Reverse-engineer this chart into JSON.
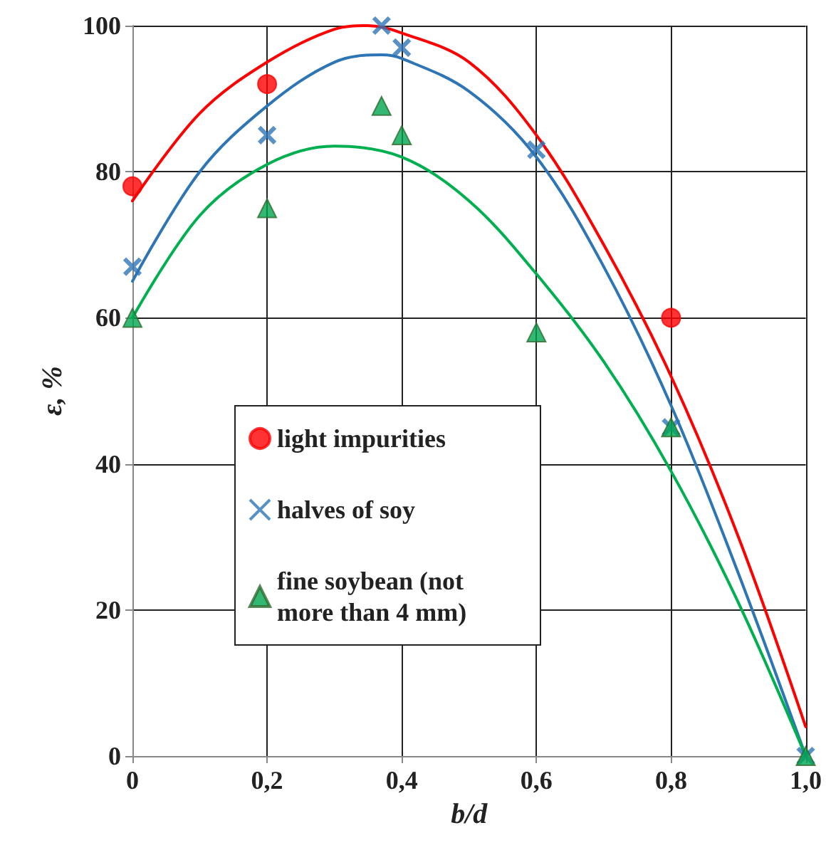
{
  "chart_data": {
    "type": "scatter",
    "xlabel": "b/d",
    "ylabel": "ε, %",
    "xlim": [
      0,
      1
    ],
    "xticks": [
      {
        "value": 0,
        "label": "0"
      },
      {
        "value": 0.2,
        "label": "0,2"
      },
      {
        "value": 0.4,
        "label": "0,4"
      },
      {
        "value": 0.6,
        "label": "0,6"
      },
      {
        "value": 0.8,
        "label": "0,8"
      },
      {
        "value": 1,
        "label": "1,0"
      }
    ],
    "ylim": [
      0,
      100
    ],
    "yticks": [
      0,
      20,
      40,
      60,
      80,
      100
    ],
    "grid": true,
    "legend": "bottom left",
    "series": [
      {
        "name": "light impurities",
        "marker": "circle",
        "color": "#ff0000",
        "x": [
          0,
          0.2,
          0.8
        ],
        "values": [
          78,
          92,
          60
        ]
      },
      {
        "name": "halves of soy",
        "marker": "cross",
        "color": "#2e75b6",
        "x": [
          0,
          0.2,
          0.37,
          0.4,
          0.6,
          0.8,
          1
        ],
        "values": [
          67,
          85,
          100,
          97,
          83,
          45,
          0
        ]
      },
      {
        "name": "fine soybean (not more than 4 mm)",
        "marker": "triangle",
        "color": "#00a650",
        "x": [
          0,
          0.2,
          0.37,
          0.4,
          0.6,
          0.8,
          1
        ],
        "values": [
          60,
          75,
          89,
          85,
          58,
          45,
          0
        ]
      },
      {
        "type": "line",
        "marker": "none",
        "color": "#ff0000",
        "x": [
          0,
          0.1,
          0.2,
          0.3,
          0.35,
          0.4,
          0.5,
          0.6,
          0.7,
          0.8,
          0.9,
          1
        ],
        "values": [
          76,
          88,
          95,
          99.5,
          100,
          99,
          95,
          85,
          70,
          52,
          30,
          4
        ]
      },
      {
        "type": "line",
        "marker": "none",
        "color": "#2e75b6",
        "x": [
          0,
          0.1,
          0.2,
          0.3,
          0.37,
          0.4,
          0.5,
          0.6,
          0.7,
          0.8,
          0.9,
          1
        ],
        "values": [
          65,
          80,
          89,
          95,
          96,
          95.5,
          91,
          82,
          67,
          48,
          25,
          0
        ]
      },
      {
        "type": "line",
        "marker": "none",
        "color": "#00b050",
        "x": [
          0,
          0.1,
          0.2,
          0.3,
          0.4,
          0.5,
          0.6,
          0.7,
          0.8,
          0.9,
          1
        ],
        "values": [
          60,
          74,
          81,
          83.5,
          82,
          76,
          66,
          54,
          39,
          21,
          0
        ]
      }
    ]
  }
}
